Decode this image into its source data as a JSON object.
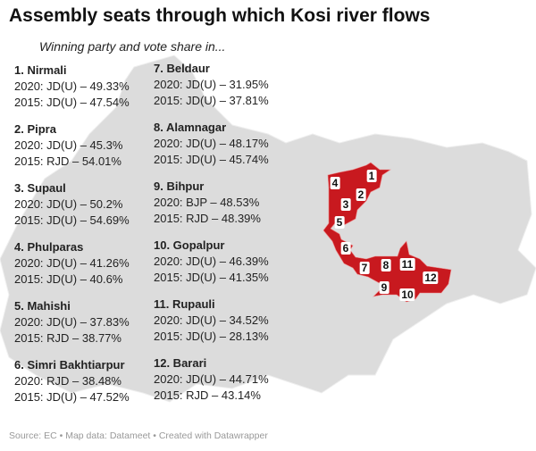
{
  "title": "Assembly seats through which Kosi river flows",
  "subtitle": "Winning party and vote share in...",
  "colors": {
    "map_base": "#dcdcdc",
    "kosi_seats": "#c8191f"
  },
  "seats": [
    {
      "name": "1. Nirmali",
      "y2020": "2020: JD(U) – 49.33%",
      "y2015": "2015: JD(U) – 47.54%",
      "num": "1"
    },
    {
      "name": "2. Pipra",
      "y2020": "2020: JD(U) – 45.3%",
      "y2015": "2015: RJD – 54.01%",
      "num": "2"
    },
    {
      "name": "3. Supaul",
      "y2020": "2020: JD(U) – 50.2%",
      "y2015": "2015: JD(U) – 54.69%",
      "num": "3"
    },
    {
      "name": "4. Phulparas",
      "y2020": "2020: JD(U) – 41.26%",
      "y2015": "2015: JD(U) – 40.6%",
      "num": "4"
    },
    {
      "name": "5. Mahishi",
      "y2020": "2020: JD(U) – 37.83%",
      "y2015": "2015: RJD – 38.77%",
      "num": "5"
    },
    {
      "name": "6. Simri Bakhtiarpur",
      "y2020": "2020: RJD – 38.48%",
      "y2015": "2015: JD(U) – 47.52%",
      "num": "6"
    },
    {
      "name": "7. Beldaur",
      "y2020": "2020: JD(U) – 31.95%",
      "y2015": "2015: JD(U) – 37.81%",
      "num": "7"
    },
    {
      "name": "8. Alamnagar",
      "y2020": "2020: JD(U) – 48.17%",
      "y2015": "2015: JD(U) – 45.74%",
      "num": "8"
    },
    {
      "name": "9. Bihpur",
      "y2020": "2020: BJP – 48.53%",
      "y2015": "2015: RJD – 48.39%",
      "num": "9"
    },
    {
      "name": "10. Gopalpur",
      "y2020": "2020: JD(U) – 46.39%",
      "y2015": "2015: JD(U) – 41.35%",
      "num": "10"
    },
    {
      "name": "11. Rupauli",
      "y2020": "2020: JD(U) – 34.52%",
      "y2015": "2015: JD(U) – 28.13%",
      "num": "11"
    },
    {
      "name": "12. Barari",
      "y2020": "2020: JD(U) – 44.71%",
      "y2015": "2015: RJD – 43.14%",
      "num": "12"
    }
  ],
  "footer": "Source: EC • Map data: Datameet • Created with Datawrapper"
}
